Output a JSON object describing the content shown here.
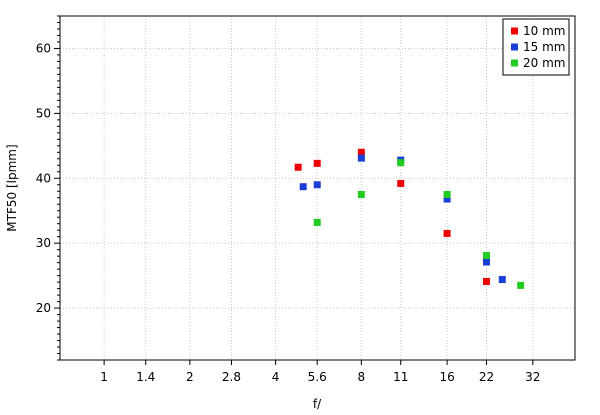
{
  "chart_data": {
    "type": "scatter",
    "title": "",
    "xlabel": "f/",
    "ylabel": "MTF50 [lpmm]",
    "x_scale": "log",
    "x_ticks": [
      "1",
      "1.4",
      "2",
      "2.8",
      "4",
      "5.6",
      "8",
      "11",
      "16",
      "22",
      "32"
    ],
    "x_tick_values": [
      1,
      1.4,
      2,
      2.8,
      4,
      5.6,
      8,
      11,
      16,
      22,
      32
    ],
    "xlim": [
      0.7,
      45
    ],
    "y_ticks": [
      "20",
      "30",
      "40",
      "50",
      "60"
    ],
    "ylim": [
      12,
      65
    ],
    "grid": true,
    "legend_position": "top-right",
    "series": [
      {
        "name": "10 mm",
        "color": "#ee0000",
        "points": [
          {
            "x": 4.8,
            "y": 41.7
          },
          {
            "x": 5.6,
            "y": 42.3
          },
          {
            "x": 8,
            "y": 44.0
          },
          {
            "x": 11,
            "y": 39.2
          },
          {
            "x": 16,
            "y": 31.5
          },
          {
            "x": 22,
            "y": 24.1
          }
        ]
      },
      {
        "name": "15 mm",
        "color": "#1a3fd6",
        "points": [
          {
            "x": 5.0,
            "y": 38.7
          },
          {
            "x": 5.6,
            "y": 39.0
          },
          {
            "x": 8,
            "y": 43.1
          },
          {
            "x": 11,
            "y": 42.8
          },
          {
            "x": 16,
            "y": 36.8
          },
          {
            "x": 22,
            "y": 27.1
          },
          {
            "x": 25,
            "y": 24.4
          }
        ]
      },
      {
        "name": "20 mm",
        "color": "#22cc22",
        "points": [
          {
            "x": 5.6,
            "y": 33.2
          },
          {
            "x": 8,
            "y": 37.5
          },
          {
            "x": 11,
            "y": 42.4
          },
          {
            "x": 16,
            "y": 37.5
          },
          {
            "x": 22,
            "y": 28.1
          },
          {
            "x": 29,
            "y": 23.5
          }
        ]
      }
    ]
  }
}
